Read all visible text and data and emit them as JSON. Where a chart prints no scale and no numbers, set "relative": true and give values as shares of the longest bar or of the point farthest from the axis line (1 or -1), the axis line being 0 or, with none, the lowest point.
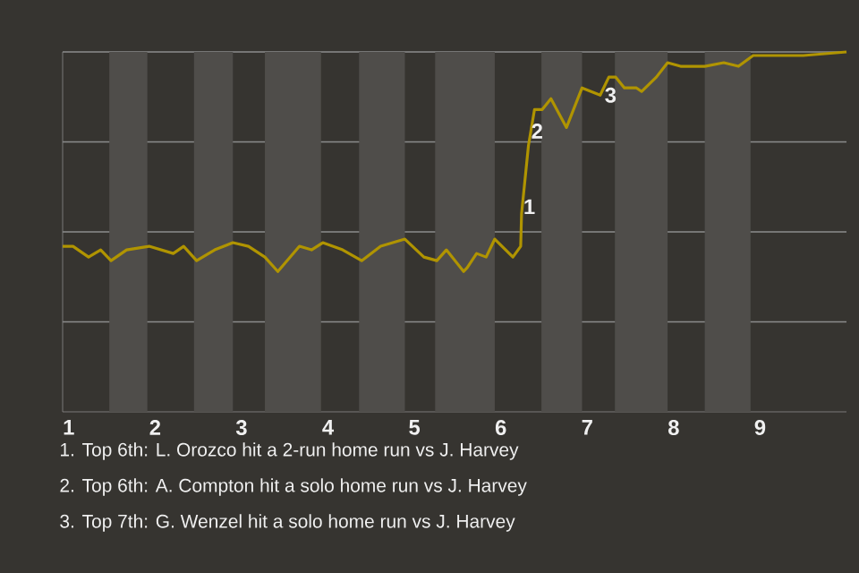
{
  "chart_data": {
    "type": "line",
    "relative": true,
    "grid": "y",
    "x": [
      0.93,
      1.05,
      1.23,
      1.37,
      1.49,
      1.67,
      1.93,
      2.21,
      2.33,
      2.48,
      2.69,
      2.9,
      3.08,
      3.27,
      3.42,
      3.67,
      3.81,
      3.94,
      4.17,
      4.39,
      4.61,
      4.89,
      5.11,
      5.26,
      5.37,
      5.57,
      5.61,
      5.72,
      5.83,
      5.93,
      6.14,
      6.23,
      6.24,
      6.32,
      6.39,
      6.48,
      6.58,
      6.76,
      6.94,
      7.15,
      7.25,
      7.33,
      7.43,
      7.57,
      7.63,
      7.8,
      7.93,
      8.08,
      8.36,
      8.58,
      8.75,
      8.92,
      9.14,
      9.5,
      10
    ],
    "xlim": [
      0.93,
      10
    ],
    "xticks": [
      1,
      2,
      3,
      4,
      5,
      6,
      7,
      8,
      9
    ],
    "series": [
      {
        "color": "#b09400",
        "values": [
          0.46,
          0.46,
          0.43,
          0.45,
          0.42,
          0.45,
          0.46,
          0.44,
          0.46,
          0.42,
          0.45,
          0.47,
          0.46,
          0.43,
          0.39,
          0.46,
          0.45,
          0.47,
          0.45,
          0.42,
          0.46,
          0.48,
          0.43,
          0.42,
          0.45,
          0.39,
          0.4,
          0.44,
          0.43,
          0.48,
          0.43,
          0.46,
          0.55,
          0.74,
          0.84,
          0.84,
          0.87,
          0.79,
          0.9,
          0.88,
          0.93,
          0.93,
          0.9,
          0.9,
          0.89,
          0.93,
          0.97,
          0.96,
          0.96,
          0.97,
          0.96,
          0.99,
          0.99,
          0.99,
          1.0
        ]
      }
    ],
    "bands": [
      {
        "axis": "x",
        "from": 1.47,
        "to": 1.91,
        "color": "#4f4d4a"
      },
      {
        "axis": "x",
        "from": 2.45,
        "to": 2.9,
        "color": "#4f4d4a"
      },
      {
        "axis": "x",
        "from": 3.27,
        "to": 3.92,
        "color": "#4f4d4a"
      },
      {
        "axis": "x",
        "from": 4.36,
        "to": 4.89,
        "color": "#4f4d4a"
      },
      {
        "axis": "x",
        "from": 5.24,
        "to": 5.93,
        "color": "#4f4d4a"
      },
      {
        "axis": "x",
        "from": 6.47,
        "to": 6.94,
        "color": "#4f4d4a"
      },
      {
        "axis": "x",
        "from": 7.32,
        "to": 7.93,
        "color": "#4f4d4a"
      },
      {
        "axis": "x",
        "from": 8.36,
        "to": 8.89,
        "color": "#4f4d4a"
      }
    ],
    "annotations": [
      {
        "text": "1",
        "x": 6.33,
        "y": 0.57
      },
      {
        "text": "2",
        "x": 6.42,
        "y": 0.78
      },
      {
        "text": "3",
        "x": 7.27,
        "y": 0.88
      },
      "1. Top 6th: L. Orozco hit a 2-run home run vs J. Harvey",
      "2. Top 6th: A. Compton hit a solo home run vs J. Harvey",
      "3. Top 7th: G. Wenzel hit a solo home run vs J. Harvey"
    ]
  }
}
